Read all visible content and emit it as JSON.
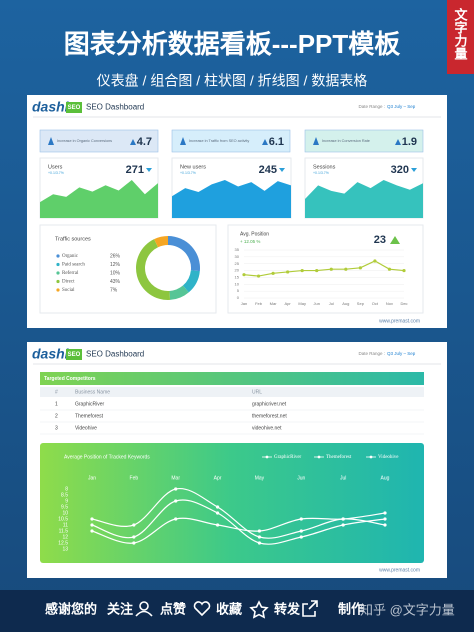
{
  "header": {
    "title": "图表分析数据看板---PPT模板",
    "subtitle": "仪表盘 / 组合图 / 柱状图 / 折线图 / 数据表格",
    "tag": "文字力量"
  },
  "dashboard_1": {
    "logo": "dashi",
    "badge": "SEO",
    "title": "SEO Dashboard",
    "date_label": "Date Range :",
    "date_value": "Q3 July – Sep",
    "kpis": [
      {
        "label": "Increase in Organic Conversions",
        "value": 4.7
      },
      {
        "label": "Increase in Traffic from SEO activity",
        "value": 6.1
      },
      {
        "label": "Increase in Conversion Rate",
        "value": 1.9
      }
    ],
    "footer": "www.premast.com"
  },
  "chart_data": [
    {
      "type": "area",
      "title": "Users",
      "subtitle": "+0.1/3.7%",
      "current": 271,
      "values": [
        30,
        45,
        40,
        58,
        50,
        62,
        52,
        72,
        45,
        66
      ],
      "color": "#5fcf6a"
    },
    {
      "type": "area",
      "title": "New users",
      "subtitle": "+0.1/3.7%",
      "current": 245,
      "values": [
        40,
        55,
        48,
        62,
        70,
        58,
        66,
        50,
        68,
        60
      ],
      "color": "#1fa0de"
    },
    {
      "type": "area",
      "title": "Sessions",
      "subtitle": "+0.1/3.7%",
      "current": 320,
      "values": [
        35,
        60,
        50,
        45,
        66,
        55,
        70,
        60,
        52,
        64
      ],
      "color": "#36c2bd"
    },
    {
      "type": "pie",
      "title": "Traffic sources",
      "categories": [
        "Organic",
        "Paid search",
        "Referral",
        "Direct",
        "Social"
      ],
      "values": [
        26,
        12,
        10,
        43,
        7
      ],
      "value_labels": [
        "26%",
        "12%",
        "10%",
        "43%",
        "7%"
      ],
      "colors": [
        "#4a8fd6",
        "#2fb3c8",
        "#56c596",
        "#8dc63f",
        "#f5a623"
      ]
    },
    {
      "type": "line",
      "title": "Avg. Position",
      "subtitle": "+ 12.05 %",
      "current": 23,
      "categories": [
        "Jan",
        "Feb",
        "Mar",
        "Apr",
        "May",
        "Jun",
        "Jul",
        "Aug",
        "Sep",
        "Oct",
        "Nov",
        "Dec"
      ],
      "values": [
        17,
        16,
        18,
        19,
        20,
        20,
        21,
        21,
        22,
        27,
        21,
        20
      ],
      "color": "#b1cc3a",
      "ylim": [
        0,
        35
      ],
      "yticks": [
        0,
        5,
        10,
        15,
        20,
        25,
        30,
        35
      ],
      "grid": true
    },
    {
      "type": "line",
      "title": "Average Position of Tracked Keywords",
      "categories": [
        "Jan",
        "Feb",
        "Mar",
        "Apr",
        "May",
        "Jun",
        "Jul",
        "Aug"
      ],
      "series": [
        {
          "name": "GraphicRiver",
          "color": "#ffffff",
          "values": [
            10.5,
            11,
            8,
            9.5,
            12,
            11.5,
            10.5,
            11
          ]
        },
        {
          "name": "Themeforest",
          "color": "#ffffff",
          "values": [
            11,
            12,
            9,
            10,
            12.5,
            12,
            11,
            10.5
          ]
        },
        {
          "name": "Videohive",
          "color": "#ffffff",
          "values": [
            11.5,
            12.5,
            10.5,
            11,
            11.5,
            10.5,
            10.5,
            10
          ]
        }
      ],
      "ylim": [
        13,
        8
      ],
      "yticks": [
        8,
        8.5,
        9,
        9.5,
        10,
        10.5,
        11,
        11.5,
        12,
        12.5,
        13
      ],
      "smooth": true
    }
  ],
  "dashboard_2": {
    "logo": "dashi",
    "badge": "SEO",
    "title": "SEO Dashboard",
    "date_label": "Date Range :",
    "date_value": "Q3 July – Sep",
    "table": {
      "title": "Targeted Competitors",
      "columns": [
        "#",
        "Business Name",
        "URL"
      ],
      "rows": [
        [
          1,
          "GraphicRiver",
          "graphicriver.net"
        ],
        [
          2,
          "Themeforest",
          "themeforest.net"
        ],
        [
          3,
          "Videohive",
          "videohive.net"
        ]
      ]
    },
    "footer": "www.premast.com"
  },
  "footer": {
    "items": [
      "感谢您的",
      "关注",
      "点赞",
      "收藏",
      "转发",
      "制作"
    ],
    "watermark": "知乎 @文字力量"
  }
}
